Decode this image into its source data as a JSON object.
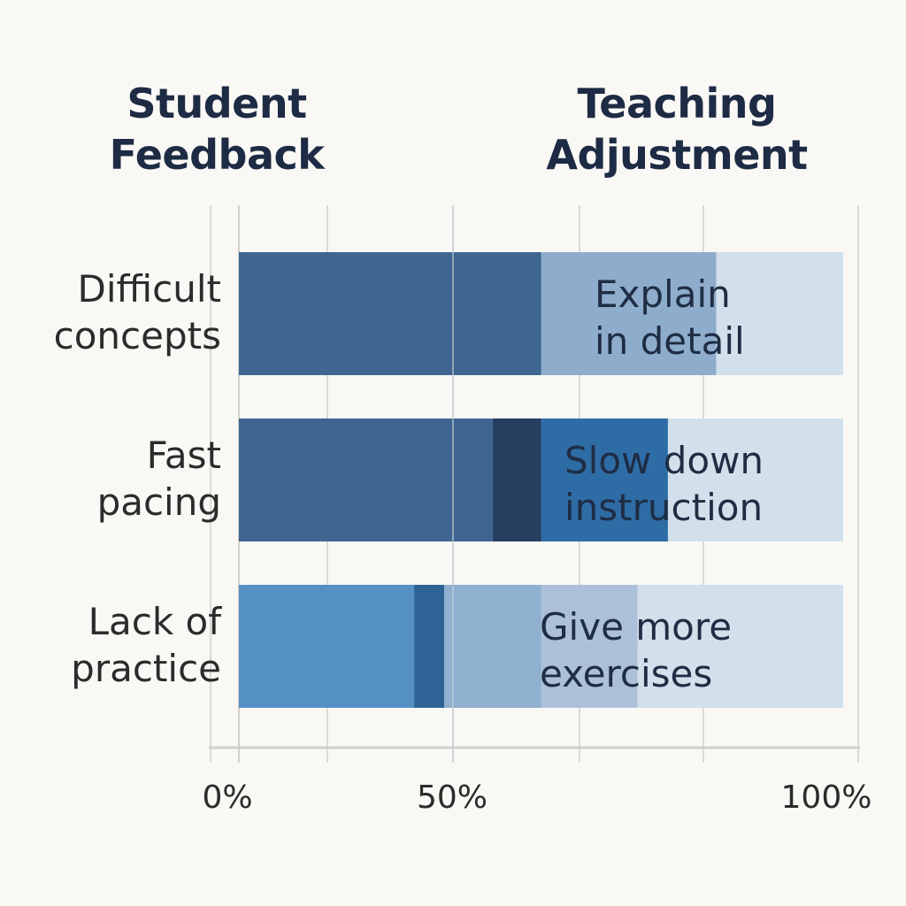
{
  "chart_data": {
    "type": "bar",
    "orientation": "horizontal",
    "stacked": true,
    "title_left": [
      "Student",
      "Feedback"
    ],
    "title_right": [
      "Teaching",
      "Adjustment"
    ],
    "categories": [
      [
        "Difficult",
        "concepts"
      ],
      [
        "Fast",
        "pacing"
      ],
      [
        "Lack of",
        "practice"
      ]
    ],
    "adjustments": [
      [
        "Explain",
        "in detail"
      ],
      [
        "Slow down",
        "instruction"
      ],
      [
        "Give more",
        "exercises"
      ]
    ],
    "segments": [
      [
        {
          "from": 0,
          "to": 50,
          "color": "#3e6690"
        },
        {
          "from": 50,
          "to": 79,
          "color": "#8eaccb"
        },
        {
          "from": 79,
          "to": 100,
          "color": "#d2e0ec"
        }
      ],
      [
        {
          "from": 0,
          "to": 42,
          "color": "#3e6690"
        },
        {
          "from": 42,
          "to": 50,
          "color": "#243f60"
        },
        {
          "from": 50,
          "to": 71,
          "color": "#2e6ca6"
        },
        {
          "from": 71,
          "to": 100,
          "color": "#d2e0ec"
        }
      ],
      [
        {
          "from": 0,
          "to": 29,
          "color": "#5590c4"
        },
        {
          "from": 29,
          "to": 34,
          "color": "#2d6396"
        },
        {
          "from": 34,
          "to": 50,
          "color": "#8fb0cf"
        },
        {
          "from": 50,
          "to": 66,
          "color": "#acc1d9"
        },
        {
          "from": 66,
          "to": 100,
          "color": "#d2e0ec"
        }
      ]
    ],
    "x_ticks": [
      "0%",
      "50%",
      "100%"
    ],
    "xlim": [
      0,
      100
    ],
    "grid": true
  }
}
